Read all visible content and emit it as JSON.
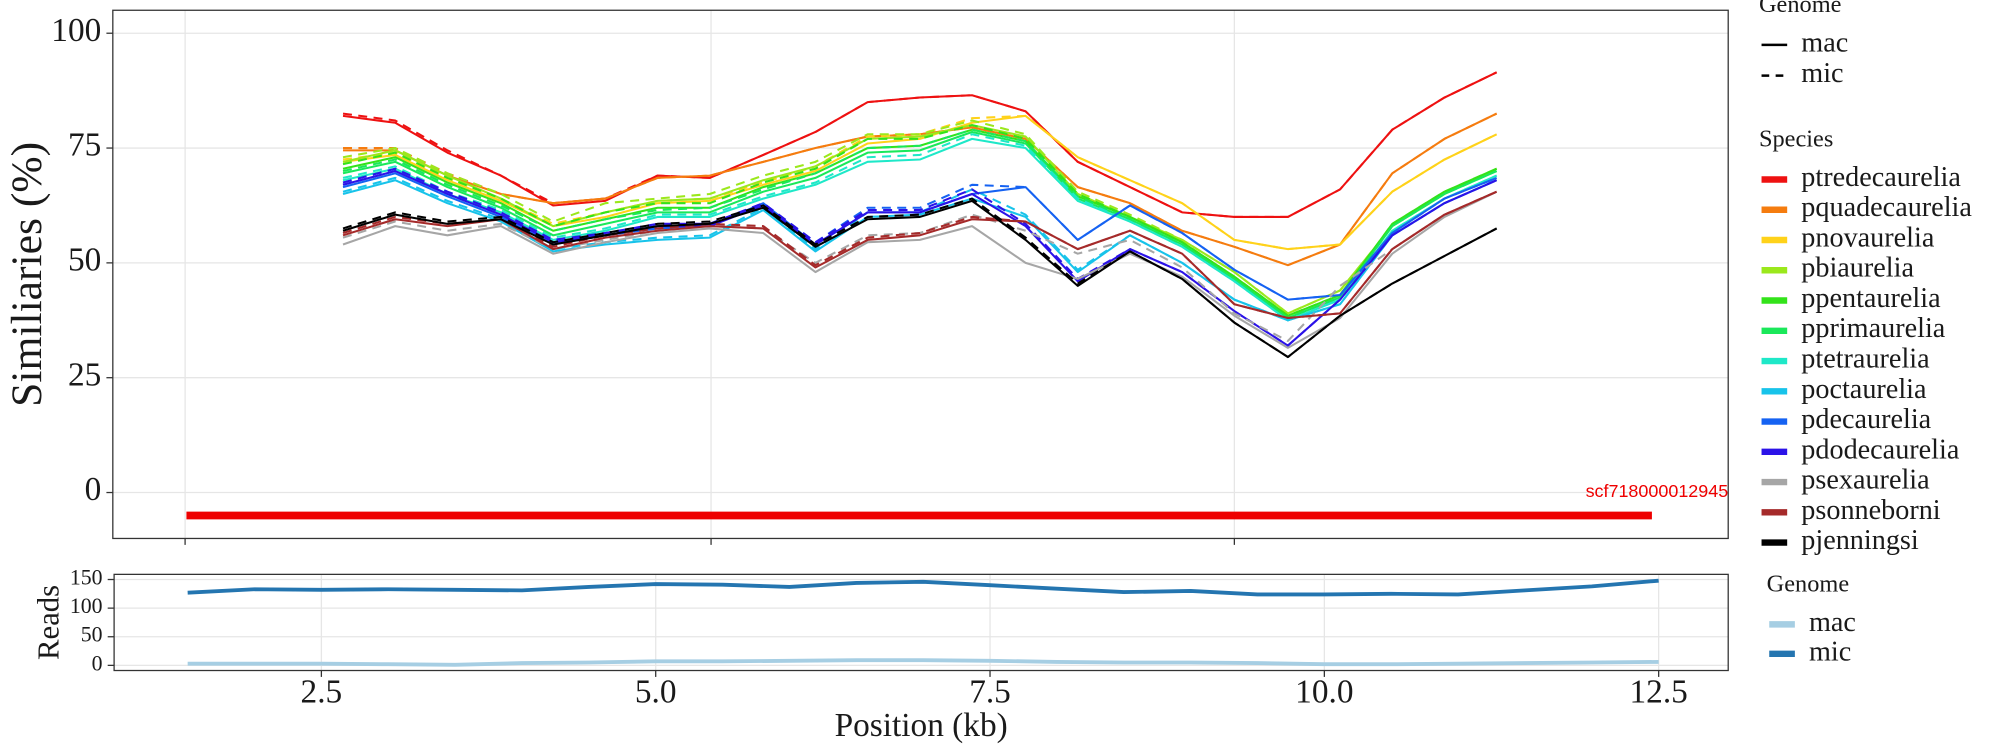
{
  "chart_data": [
    {
      "type": "line",
      "ylabel": "Similiaries (%)",
      "xlim": [
        0.95,
        13.02
      ],
      "ylim": [
        -10,
        105
      ],
      "xticks": [
        1.49,
        5.42,
        9.33
      ],
      "yticks": [
        0,
        25,
        50,
        75,
        100
      ],
      "grid": true,
      "x": [
        2.67,
        3.06,
        3.45,
        3.85,
        4.24,
        4.63,
        5.02,
        5.41,
        5.81,
        6.2,
        6.59,
        6.98,
        7.37,
        7.77,
        8.16,
        8.55,
        8.94,
        9.33,
        9.73,
        10.12,
        10.51,
        10.9,
        11.29
      ],
      "linetype_legend": {
        "title": "Genome",
        "entries": [
          {
            "name": "mac",
            "dash": "solid"
          },
          {
            "name": "mic",
            "dash": "dashed"
          }
        ]
      },
      "color_legend_title": "Species",
      "contig": {
        "label": "scf718000012945",
        "start": 1.5,
        "end": 12.45,
        "y": -5,
        "color": "#ee0000"
      },
      "series": [
        {
          "name": "ptredecaurelia",
          "genome": "mac",
          "color": "#ee1111",
          "values": [
            82,
            80.5,
            74,
            69,
            62.5,
            63.5,
            69,
            68.5,
            73.5,
            78.5,
            85,
            86,
            86.5,
            83,
            72,
            66.5,
            61,
            60,
            60,
            66,
            79,
            86,
            91.5
          ]
        },
        {
          "name": "ptredecaurelia",
          "genome": "mic",
          "color": "#ee1111",
          "values": [
            82.5,
            81,
            74.5,
            69,
            63,
            64,
            69,
            68.5,
            73.5,
            78.5,
            85,
            86,
            86.5,
            83,
            72,
            66.5,
            61,
            60,
            60,
            66,
            79,
            86,
            91.5
          ]
        },
        {
          "name": "pquadecaurelia",
          "genome": "mac",
          "color": "#f57c0f",
          "values": [
            74.5,
            74.5,
            69,
            65,
            63,
            64,
            68.5,
            69,
            72,
            75,
            77.5,
            78,
            79.5,
            77,
            66.5,
            63,
            57,
            53.5,
            49.5,
            54,
            69.5,
            77,
            82.5
          ]
        },
        {
          "name": "pquadecaurelia",
          "genome": "mic",
          "color": "#f57c0f",
          "values": [
            75,
            75,
            69.5,
            65,
            63,
            64,
            68.5,
            69,
            72,
            75,
            77.5,
            78,
            79.5,
            77,
            66.5,
            63,
            57,
            53.5,
            49.5,
            54,
            69.5,
            77,
            82.5
          ]
        },
        {
          "name": "pnovaurelia",
          "genome": "mac",
          "color": "#ffd21a",
          "values": [
            72,
            73.5,
            68,
            63.5,
            58,
            60,
            63,
            63.5,
            67,
            70,
            76,
            77,
            80.5,
            82,
            73,
            68,
            63,
            55,
            53,
            54,
            65.5,
            72.5,
            78
          ]
        },
        {
          "name": "pnovaurelia",
          "genome": "mic",
          "color": "#ffd21a",
          "values": [
            72.5,
            74,
            68.5,
            64,
            58.5,
            61,
            63.5,
            64,
            67.5,
            71,
            77.5,
            78,
            81.5,
            82,
            73,
            68,
            63,
            55,
            53,
            54,
            65.5,
            72.5,
            78
          ]
        },
        {
          "name": "pbiaurelia",
          "genome": "mac",
          "color": "#9be81c",
          "values": [
            72,
            74.5,
            69,
            64,
            58,
            61,
            63.5,
            64,
            68,
            71,
            77,
            77.5,
            80,
            77.5,
            65,
            60,
            55,
            48,
            39,
            44,
            58,
            65,
            70.5
          ]
        },
        {
          "name": "pbiaurelia",
          "genome": "mic",
          "color": "#9be81c",
          "values": [
            73,
            75,
            69.5,
            65,
            59,
            63,
            64,
            65,
            69,
            72,
            78,
            78,
            81,
            78,
            65.5,
            60.5,
            55,
            48,
            39,
            44,
            58,
            65,
            70.5
          ]
        },
        {
          "name": "ppentaurelia",
          "genome": "mac",
          "color": "#33e31a",
          "values": [
            70.5,
            73,
            67.5,
            63,
            57,
            59.5,
            62,
            62,
            66.5,
            69.5,
            75,
            75.5,
            79,
            76.5,
            64.5,
            60,
            54.5,
            47,
            38.5,
            43,
            58.5,
            65.5,
            70.5
          ]
        },
        {
          "name": "ppentaurelia",
          "genome": "mic",
          "color": "#33e31a",
          "values": [
            71.5,
            74,
            68.5,
            64,
            58,
            61,
            63,
            63,
            67.5,
            70.5,
            77,
            77,
            80,
            77,
            65,
            60,
            54.5,
            47,
            38.5,
            43,
            58.5,
            65.5,
            70.5
          ]
        },
        {
          "name": "pprimaurelia",
          "genome": "mac",
          "color": "#1ae85a",
          "values": [
            69.5,
            72,
            66.5,
            62,
            56,
            58.5,
            61,
            61,
            65.5,
            68.5,
            74,
            74.5,
            78.5,
            76,
            64,
            59.5,
            54,
            46.5,
            38,
            42.5,
            58,
            65,
            70
          ]
        },
        {
          "name": "pprimaurelia",
          "genome": "mic",
          "color": "#1ae85a",
          "values": [
            70,
            72.5,
            67,
            62.5,
            57,
            59.5,
            61.5,
            62,
            66,
            69.5,
            75,
            75.5,
            79,
            76.5,
            64.5,
            59.5,
            54,
            46.5,
            38,
            42.5,
            58,
            65,
            70
          ]
        },
        {
          "name": "ptetraurelia",
          "genome": "mac",
          "color": "#1ee8c8",
          "values": [
            68,
            70.5,
            65,
            61,
            55,
            57,
            60,
            60,
            64,
            67,
            72,
            72.5,
            77,
            75,
            63.5,
            59,
            53.5,
            46,
            37.5,
            42,
            57,
            64,
            69
          ]
        },
        {
          "name": "ptetraurelia",
          "genome": "mic",
          "color": "#1ee8c8",
          "values": [
            68.5,
            71,
            65.5,
            61.5,
            55.5,
            57.5,
            60.5,
            60.5,
            64.5,
            67.5,
            73,
            73.5,
            78,
            75.5,
            64,
            59,
            53.5,
            46,
            37.5,
            42,
            57,
            64,
            69
          ]
        },
        {
          "name": "poctaurelia",
          "genome": "mac",
          "color": "#17c3ea",
          "values": [
            65,
            68,
            63,
            59,
            52.5,
            54,
            55,
            55.5,
            61.5,
            52.5,
            60,
            60.5,
            64,
            60,
            48,
            56,
            50,
            42,
            37.5,
            41,
            56,
            63,
            68
          ]
        },
        {
          "name": "poctaurelia",
          "genome": "mic",
          "color": "#17c3ea",
          "values": [
            65.5,
            68.5,
            63.5,
            59.5,
            53,
            54.5,
            55.5,
            56,
            62,
            53,
            61,
            61,
            66,
            60.5,
            48.5,
            56,
            50,
            42,
            37.5,
            41,
            56,
            63,
            68
          ]
        },
        {
          "name": "pdecaurelia",
          "genome": "mac",
          "color": "#1562f2",
          "values": [
            66.5,
            69.5,
            64.5,
            60,
            54,
            56,
            57.5,
            58,
            63,
            54,
            61,
            61,
            65,
            66.5,
            55,
            62.5,
            56.5,
            48.5,
            42,
            43,
            56.5,
            64,
            68.5
          ]
        },
        {
          "name": "pdecaurelia",
          "genome": "mic",
          "color": "#1562f2",
          "values": [
            67,
            70,
            65,
            60.5,
            54.5,
            56.5,
            58,
            58.5,
            63,
            54.5,
            62,
            62,
            67,
            66.5,
            55,
            62.5,
            56.5,
            48.5,
            42,
            43,
            56.5,
            64,
            68.5
          ]
        },
        {
          "name": "pdodecaurelia",
          "genome": "mac",
          "color": "#2b12e8",
          "values": [
            67,
            70,
            65,
            60.5,
            54.5,
            56,
            58,
            58,
            62.5,
            54,
            61,
            61,
            65,
            58,
            46,
            53,
            48,
            39.5,
            32,
            42,
            56,
            63,
            68
          ]
        },
        {
          "name": "pdodecaurelia",
          "genome": "mic",
          "color": "#2b12e8",
          "values": [
            67.5,
            70.5,
            65.5,
            61,
            55,
            56.5,
            58.5,
            58.5,
            63,
            54.5,
            61.5,
            61.5,
            66,
            58.5,
            46.5,
            53,
            48,
            39.5,
            32,
            42,
            56,
            63,
            68
          ]
        },
        {
          "name": "psexaurelia",
          "genome": "mac",
          "color": "#a6a6a6",
          "values": [
            54,
            58,
            56,
            58,
            52,
            54.5,
            56.5,
            57.5,
            56.5,
            48,
            54.5,
            55,
            58,
            50,
            46.5,
            52,
            47,
            38.5,
            31.5,
            38,
            52,
            60,
            65.5
          ]
        },
        {
          "name": "psexaurelia",
          "genome": "mic",
          "color": "#a6a6a6",
          "values": [
            55.5,
            59,
            57,
            58.5,
            53,
            55,
            57,
            58,
            57.5,
            50,
            56,
            56.5,
            60.5,
            57,
            52,
            55,
            49,
            39,
            33,
            45,
            53,
            60.5,
            65.5
          ]
        },
        {
          "name": "psonneborni",
          "genome": "mac",
          "color": "#a52a2a",
          "values": [
            56,
            59.5,
            58,
            59.5,
            53,
            55.5,
            57,
            58,
            57.5,
            49,
            55,
            56,
            59.5,
            59,
            53,
            57,
            52,
            41,
            38,
            39,
            53,
            60.5,
            65.5
          ]
        },
        {
          "name": "psonneborni",
          "genome": "mic",
          "color": "#a52a2a",
          "values": [
            56.5,
            60,
            58.5,
            59.5,
            53.5,
            56,
            57.5,
            58.5,
            58,
            49.5,
            55.5,
            56.5,
            60,
            59,
            53,
            57,
            52,
            41,
            38,
            39,
            53,
            60.5,
            65.5
          ]
        },
        {
          "name": "pjenningsi",
          "genome": "mac",
          "color": "#000000",
          "values": [
            57,
            60.5,
            58.5,
            59.5,
            54,
            56,
            58,
            58.5,
            62,
            53.5,
            59.5,
            60,
            63.5,
            55,
            45,
            52.5,
            46.5,
            37,
            29.5,
            38.5,
            45.5,
            51.5,
            57.5
          ]
        },
        {
          "name": "pjenningsi",
          "genome": "mic",
          "color": "#000000",
          "values": [
            57.5,
            61,
            59,
            60,
            54.5,
            56.5,
            58.5,
            59,
            62.5,
            54,
            60,
            60.5,
            64,
            55.5,
            45.5,
            52.5,
            46.5,
            37,
            29.5,
            38.5,
            45.5,
            51.5,
            57.5
          ]
        }
      ]
    },
    {
      "type": "line",
      "ylabel": "Reads",
      "xlabel": "Position (kb)",
      "xlim": [
        0.95,
        13.02
      ],
      "ylim": [
        -9,
        159
      ],
      "xticks": [
        2.5,
        {
          "value": 5,
          "label": "5.0"
        },
        7.5,
        {
          "value": 10,
          "label": "10.0"
        },
        12.5
      ],
      "yticks": [
        0,
        50,
        100,
        150
      ],
      "grid": true,
      "x": [
        1.5,
        2,
        2.5,
        3,
        3.5,
        4,
        4.5,
        5,
        5.5,
        6,
        6.5,
        7,
        7.5,
        8,
        8.5,
        9,
        9.5,
        10,
        10.5,
        11,
        11.5,
        12,
        12.5
      ],
      "color_legend_title": "Genome",
      "series": [
        {
          "name": "mac",
          "color": "#a6cee3",
          "values": [
            3,
            3,
            3,
            2,
            1,
            4,
            5,
            7,
            7,
            8,
            9,
            9,
            8,
            6,
            5,
            5,
            4,
            2,
            2,
            3,
            4,
            5,
            6
          ]
        },
        {
          "name": "mic",
          "color": "#2475b0",
          "values": [
            127,
            133,
            132,
            133,
            132,
            131,
            137,
            142,
            141,
            137,
            144,
            146,
            140,
            134,
            128,
            130,
            124,
            124,
            125,
            124,
            131,
            138,
            148
          ]
        }
      ]
    }
  ]
}
